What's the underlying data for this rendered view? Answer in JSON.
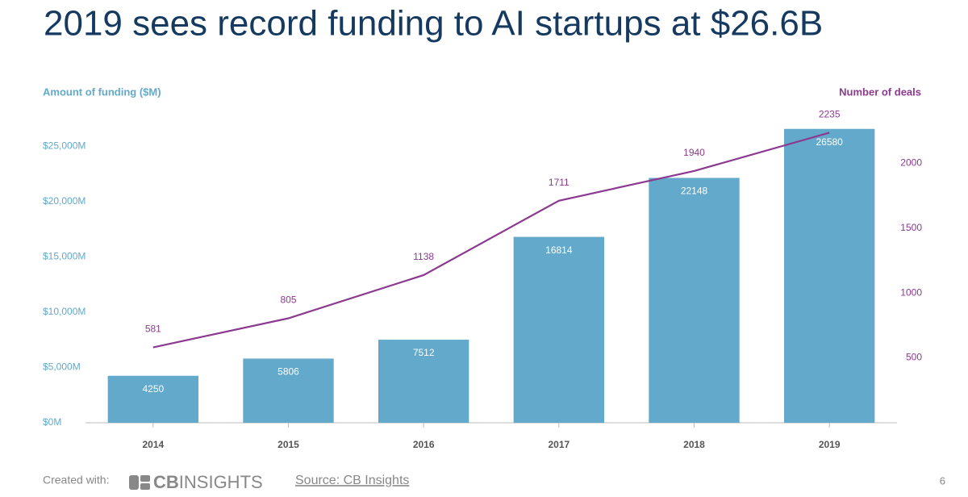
{
  "chart_data": {
    "type": "bar_line",
    "title": "2019 sees record funding to AI startups at $26.6B",
    "y_label": "Amount of funding ($M)",
    "y2_label": "Number of deals",
    "categories": [
      "2014",
      "2015",
      "2016",
      "2017",
      "2018",
      "2019"
    ],
    "series": [
      {
        "name": "Amount of funding ($M)",
        "type": "bar",
        "color": "#62a9cb",
        "values": [
          4250,
          5806,
          7512,
          16814,
          22148,
          26580
        ]
      },
      {
        "name": "Number of deals",
        "type": "line",
        "axis": "y2",
        "color": "#8b3a8f",
        "values": [
          581,
          805,
          1138,
          1711,
          1940,
          2235
        ]
      }
    ],
    "ylim": [
      0,
      27000
    ],
    "yticks": [
      {
        "value": 0,
        "label": "$0M"
      },
      {
        "value": 5000,
        "label": "$5,000M"
      },
      {
        "value": 10000,
        "label": "$10,000M"
      },
      {
        "value": 15000,
        "label": "$15,000M"
      },
      {
        "value": 20000,
        "label": "$20,000M"
      },
      {
        "value": 25000,
        "label": "$25,000M"
      }
    ],
    "y2lim": [
      0,
      2300
    ],
    "y2ticks": [
      500,
      1000,
      1500,
      2000
    ],
    "grid": false
  },
  "footer": {
    "created_with": "Created with:",
    "logo_bold": "CB",
    "logo_light": "INSIGHTS",
    "source": "Source: CB Insights",
    "page_number": 6
  }
}
